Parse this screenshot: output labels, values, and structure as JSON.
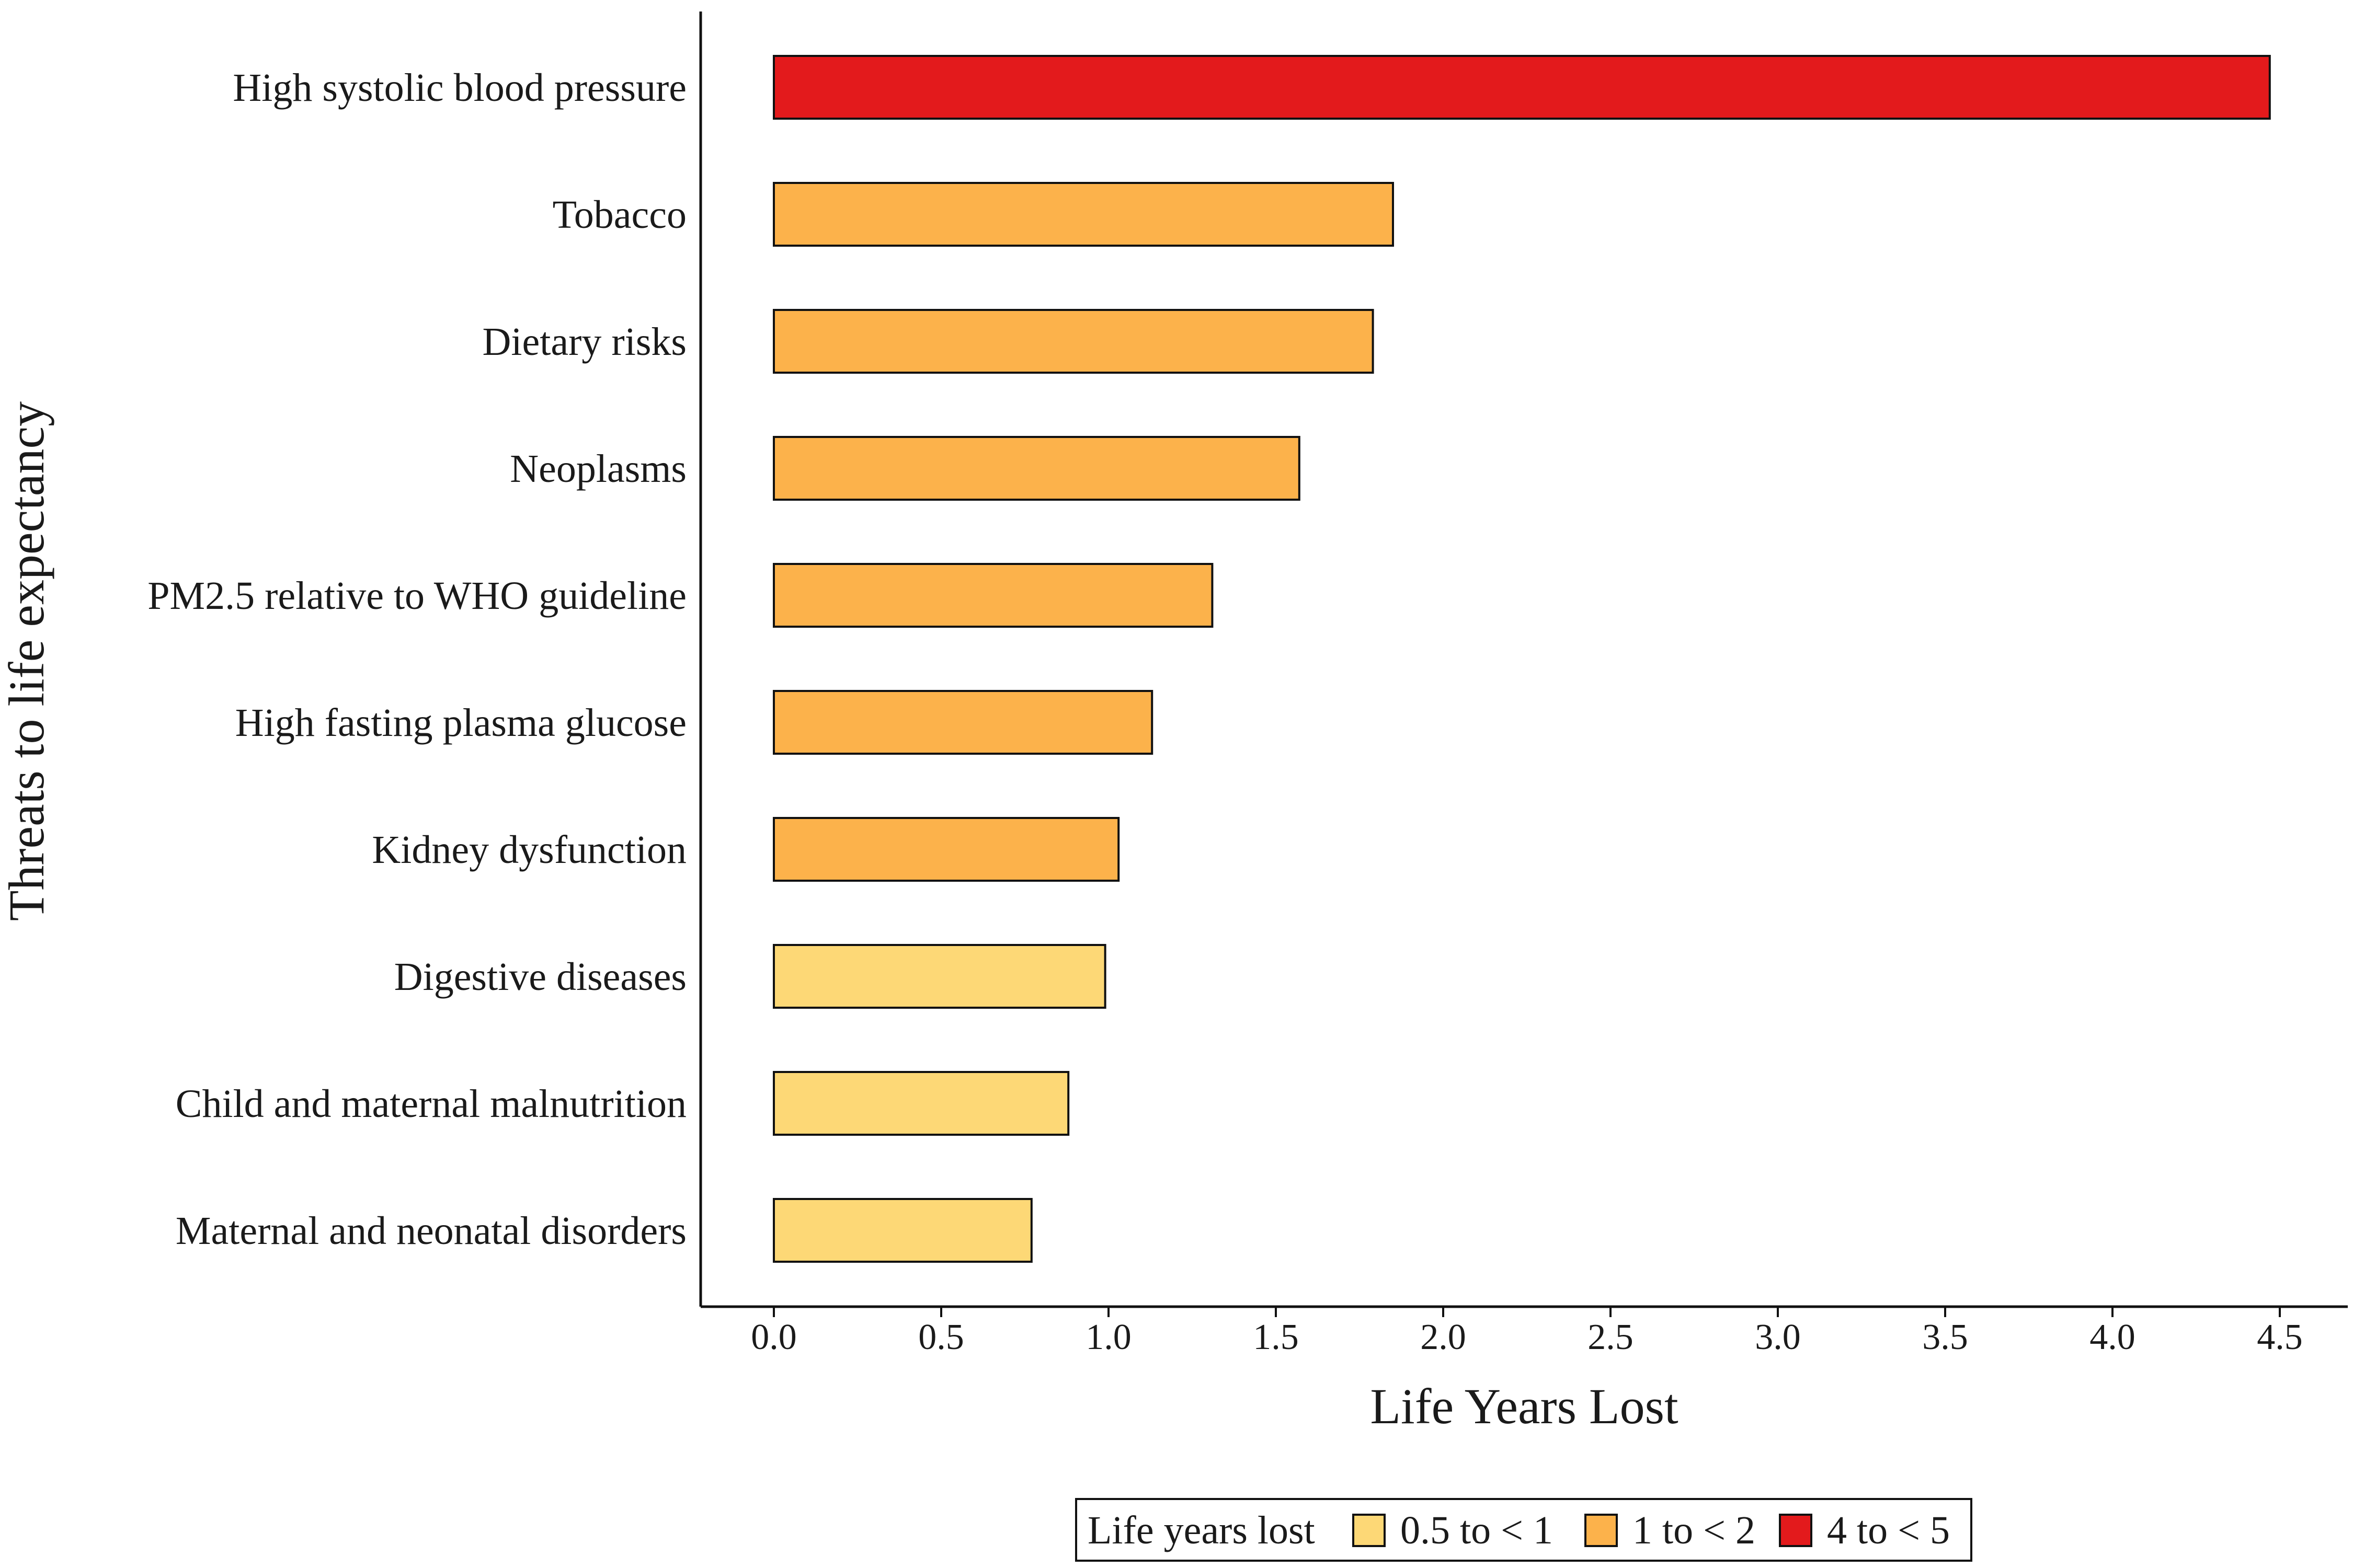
{
  "chart_data": {
    "type": "bar",
    "orientation": "horizontal",
    "xlabel": "Life Years Lost",
    "ylabel": "Threats to life expectancy",
    "xlim": [
      0,
      4.5
    ],
    "x_ticks": [
      "0.0",
      "0.5",
      "1.0",
      "1.5",
      "2.0",
      "2.5",
      "3.0",
      "3.5",
      "4.0",
      "4.5"
    ],
    "grid": false,
    "categories": [
      "High systolic blood pressure",
      "Tobacco",
      "Dietary risks",
      "Neoplasms",
      "PM2.5 relative to WHO guideline",
      "High fasting plasma glucose",
      "Kidney dysfunction",
      "Digestive diseases",
      "Child and maternal malnutrition",
      "Maternal and neonatal disorders"
    ],
    "values": [
      4.47,
      1.85,
      1.79,
      1.57,
      1.31,
      1.13,
      1.03,
      0.99,
      0.88,
      0.77
    ],
    "groups": [
      "4 to < 5",
      "1 to < 2",
      "1 to < 2",
      "1 to < 2",
      "1 to < 2",
      "1 to < 2",
      "1 to < 2",
      "0.5 to < 1",
      "0.5 to < 1",
      "0.5 to < 1"
    ],
    "legend": {
      "title": "Life years lost",
      "placement": "bottom",
      "items": [
        {
          "label": "0.5 to < 1",
          "color": "#FDD876"
        },
        {
          "label": "1 to < 2",
          "color": "#FCB24B"
        },
        {
          "label": "4 to < 5",
          "color": "#E31A1C"
        }
      ]
    }
  }
}
